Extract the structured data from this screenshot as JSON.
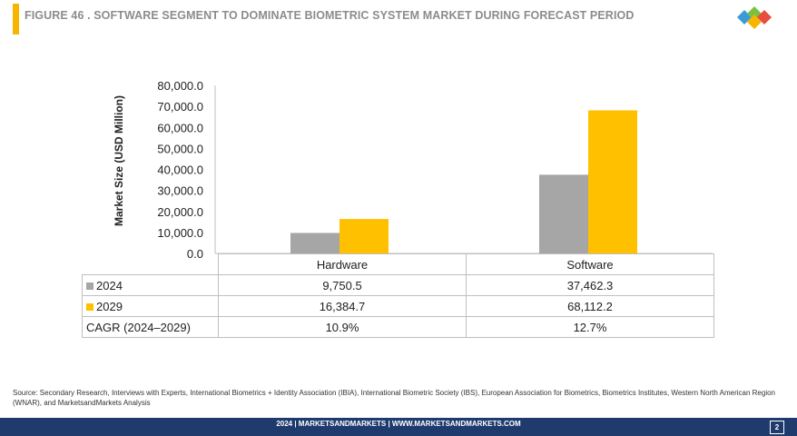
{
  "header": {
    "title": "FIGURE 46 . SOFTWARE SEGMENT TO DOMINATE BIOMETRIC SYSTEM MARKET DURING FORECAST PERIOD",
    "logo": "marketsandmarkets-logo",
    "accent_color": "#f7b500"
  },
  "chart_data": {
    "type": "bar",
    "categories": [
      "Hardware",
      "Software"
    ],
    "series": [
      {
        "name": "2024",
        "values": [
          9750.5,
          37462.3
        ],
        "color": "#a6a6a6"
      },
      {
        "name": "2029",
        "values": [
          16384.7,
          68112.2
        ],
        "color": "#ffc000"
      }
    ],
    "ylabel": "Market Size (USD Million)",
    "ylim": [
      0,
      80000
    ],
    "yticks": [
      0,
      10000,
      20000,
      30000,
      40000,
      50000,
      60000,
      70000,
      80000
    ],
    "ytick_labels": [
      "0.0",
      "10,000.0",
      "20,000.0",
      "30,000.0",
      "40,000.0",
      "50,000.0",
      "60,000.0",
      "70,000.0",
      "80,000.0"
    ],
    "grid": false,
    "legend": "data table below chart"
  },
  "table": {
    "rows": [
      {
        "label": "2024",
        "values": [
          "9,750.5",
          "37,462.3"
        ]
      },
      {
        "label": "2029",
        "values": [
          "16,384.7",
          "68,112.2"
        ]
      },
      {
        "label": "CAGR (2024–2029)",
        "values": [
          "10.9%",
          "12.7%"
        ]
      }
    ]
  },
  "source": "Source: Secondary Research, Interviews with Experts, International Biometrics + Identity Association (IBIA), International Biometric Society (IBS), European Association for Biometrics, Biometrics Institutes, Western North American Region (WNAR), and MarketsandMarkets Analysis",
  "footer": {
    "text": "2024 | MARKETSANDMARKETS | WWW.MARKETSANDMARKETS.COM",
    "page": "2",
    "color": "#1f3b6e"
  }
}
